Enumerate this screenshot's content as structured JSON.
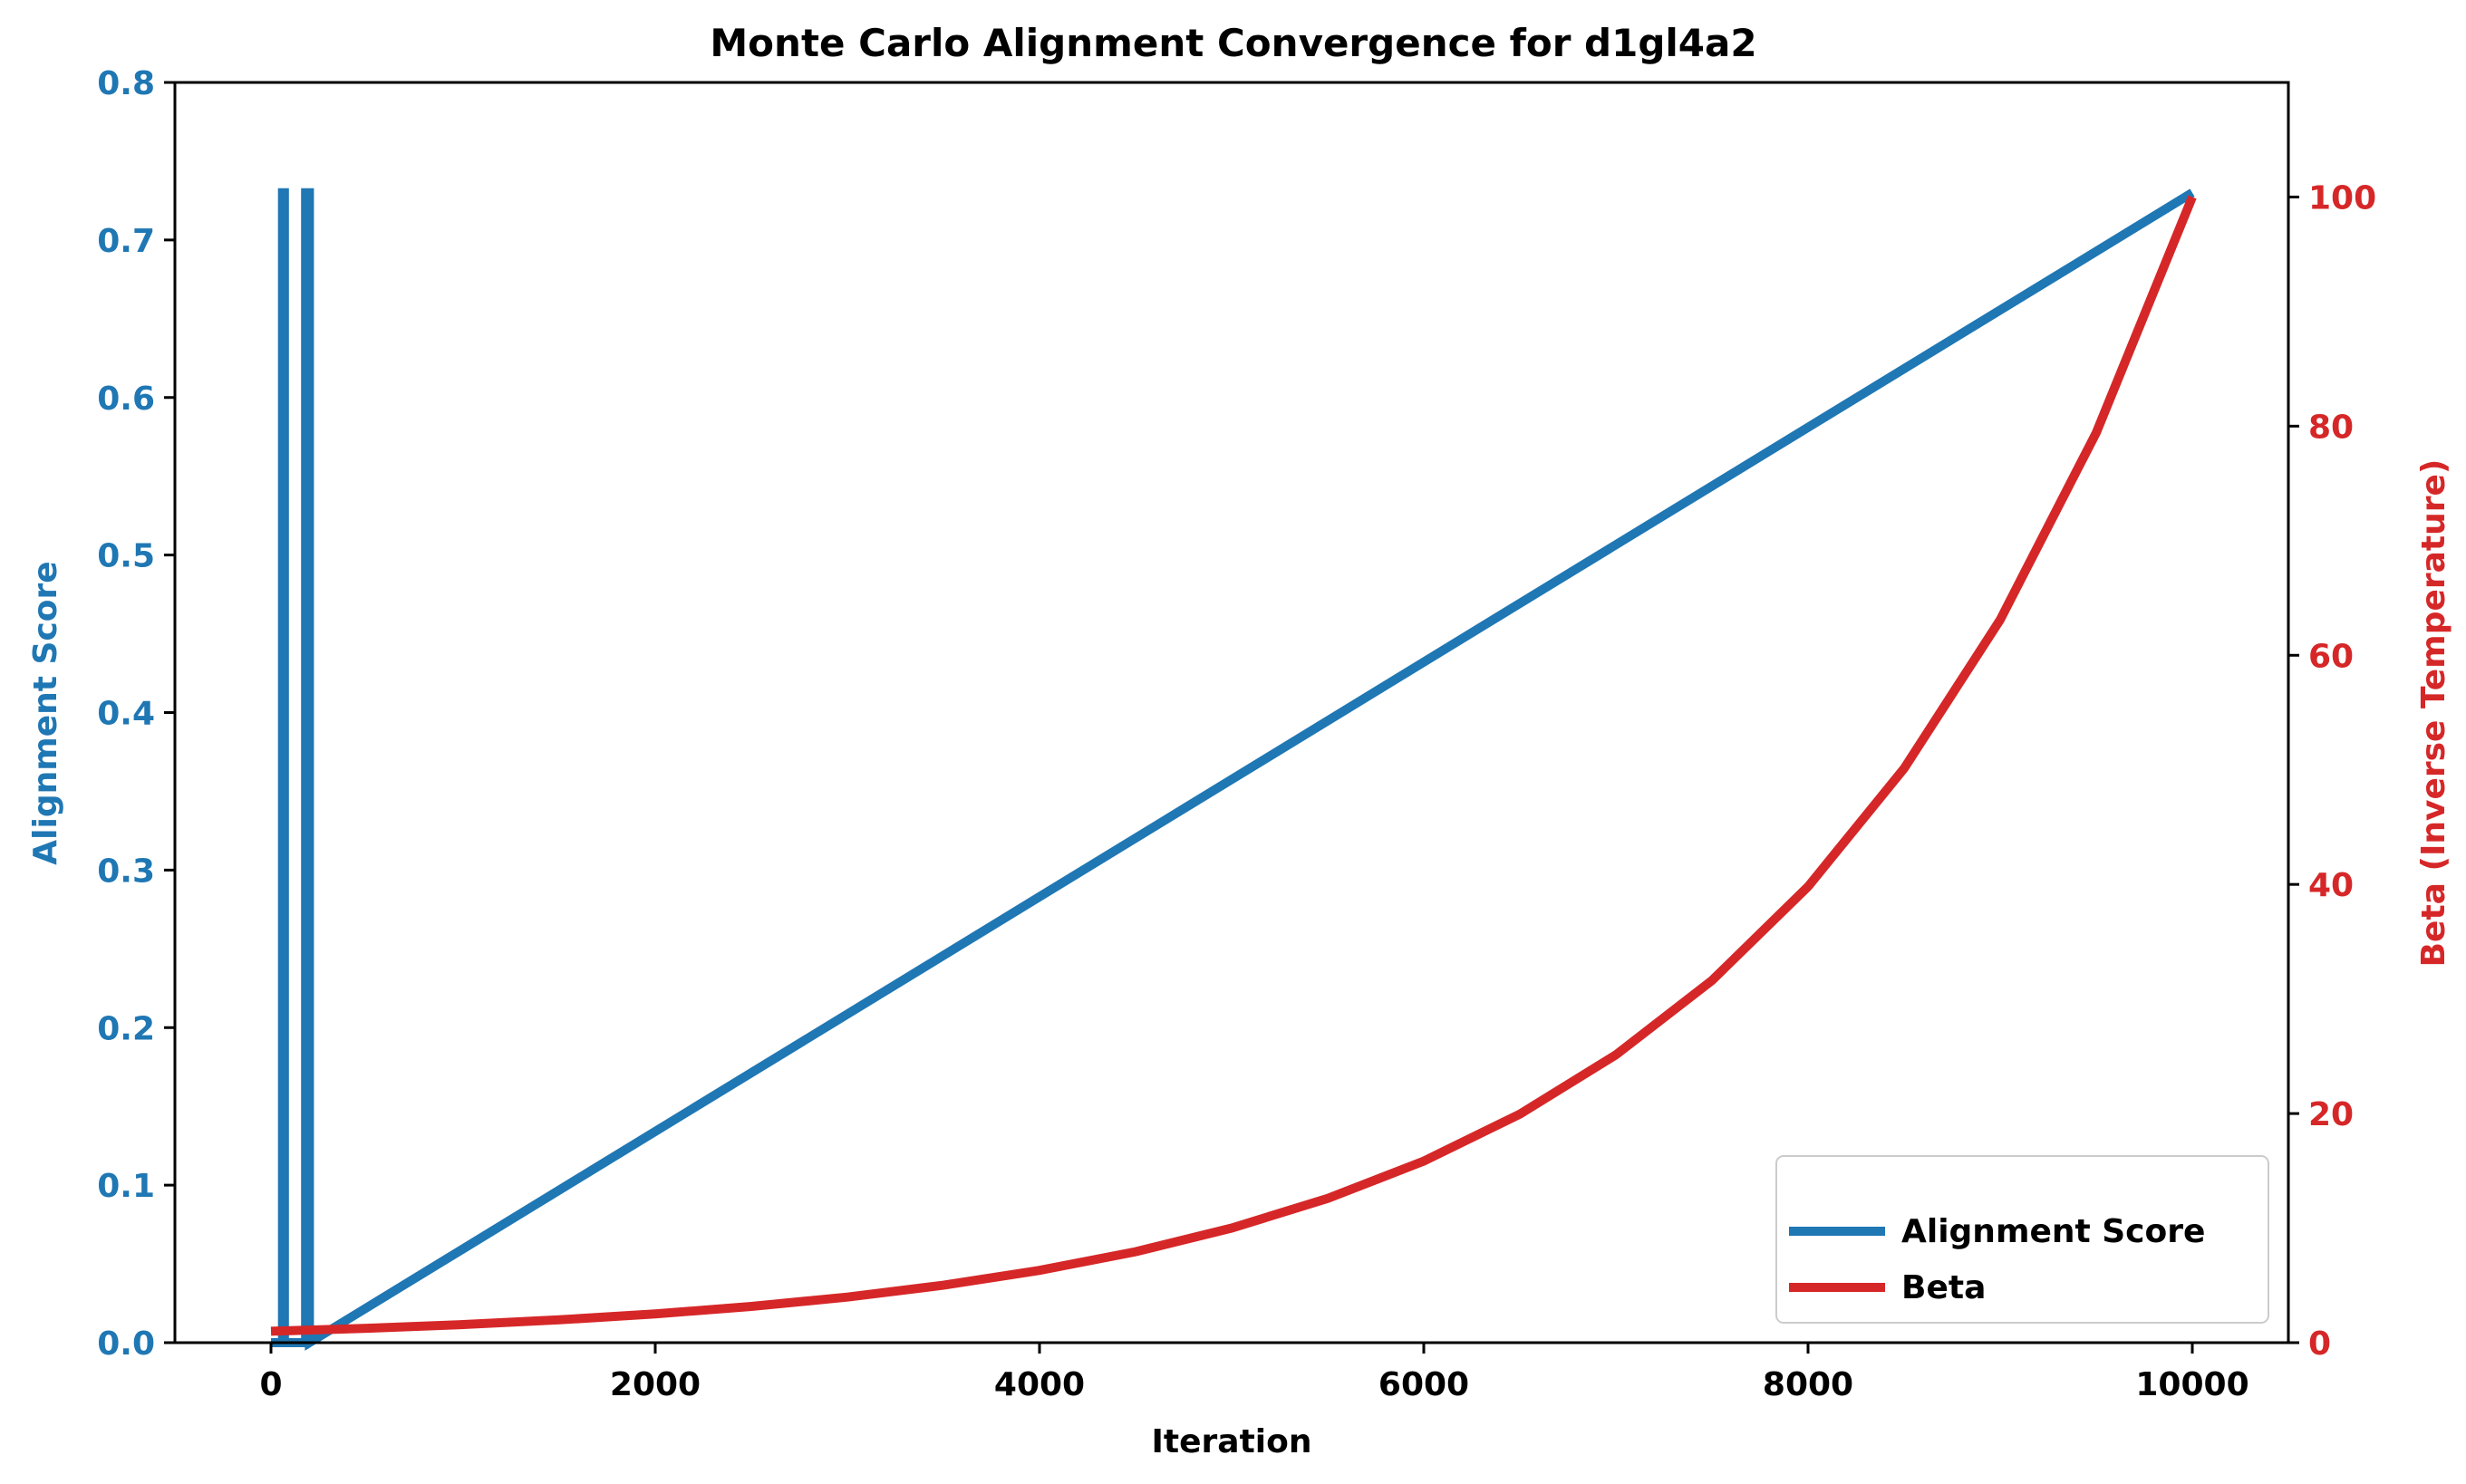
{
  "chart_data": {
    "type": "line",
    "title": "Monte Carlo Alignment Convergence for d1gl4a2",
    "xlabel": "Iteration",
    "ylabel_left": "Alignment Score",
    "ylabel_right": "Beta (Inverse Temperature)",
    "xlim": [
      -500,
      10500
    ],
    "ylim_left": [
      0,
      0.8
    ],
    "ylim_right": [
      0,
      110
    ],
    "x_ticks": [
      0,
      2000,
      4000,
      6000,
      8000,
      10000
    ],
    "y_left_ticks": [
      0.0,
      0.1,
      0.2,
      0.3,
      0.4,
      0.5,
      0.6,
      0.7,
      0.8
    ],
    "y_right_ticks": [
      0,
      20,
      40,
      60,
      80,
      100
    ],
    "x_tick_labels": [
      "0",
      "2000",
      "4000",
      "6000",
      "8000",
      "10000"
    ],
    "y_left_tick_labels": [
      "0.0",
      "0.1",
      "0.2",
      "0.3",
      "0.4",
      "0.5",
      "0.6",
      "0.7",
      "0.8"
    ],
    "y_right_tick_labels": [
      "0",
      "20",
      "40",
      "60",
      "80",
      "100"
    ],
    "series": [
      {
        "name": "Alignment Score",
        "axis": "left",
        "color": "#1f77b4",
        "x": [
          0,
          60,
          60,
          70,
          70,
          180,
          180,
          200,
          200,
          10000
        ],
        "y": [
          0.0,
          0.0,
          0.73,
          0.73,
          0.0,
          0.0,
          0.73,
          0.73,
          0.0,
          0.73
        ]
      },
      {
        "name": "Beta",
        "axis": "right",
        "color": "#d62728",
        "x": [
          0,
          500,
          1000,
          1500,
          2000,
          2500,
          3000,
          3500,
          4000,
          4500,
          5000,
          5500,
          6000,
          6500,
          7000,
          7500,
          8000,
          8500,
          9000,
          9500,
          10000
        ],
        "y": [
          1.0,
          1.26,
          1.58,
          1.99,
          2.51,
          3.16,
          3.98,
          5.01,
          6.31,
          7.94,
          10.0,
          12.59,
          15.85,
          19.95,
          25.12,
          31.62,
          39.81,
          50.12,
          63.1,
          79.43,
          100.0
        ]
      }
    ],
    "legend_position": "lower-right",
    "grid": false,
    "colors": {
      "left_axis": "#1f77b4",
      "right_axis": "#d62728",
      "frame": "#000000"
    }
  }
}
